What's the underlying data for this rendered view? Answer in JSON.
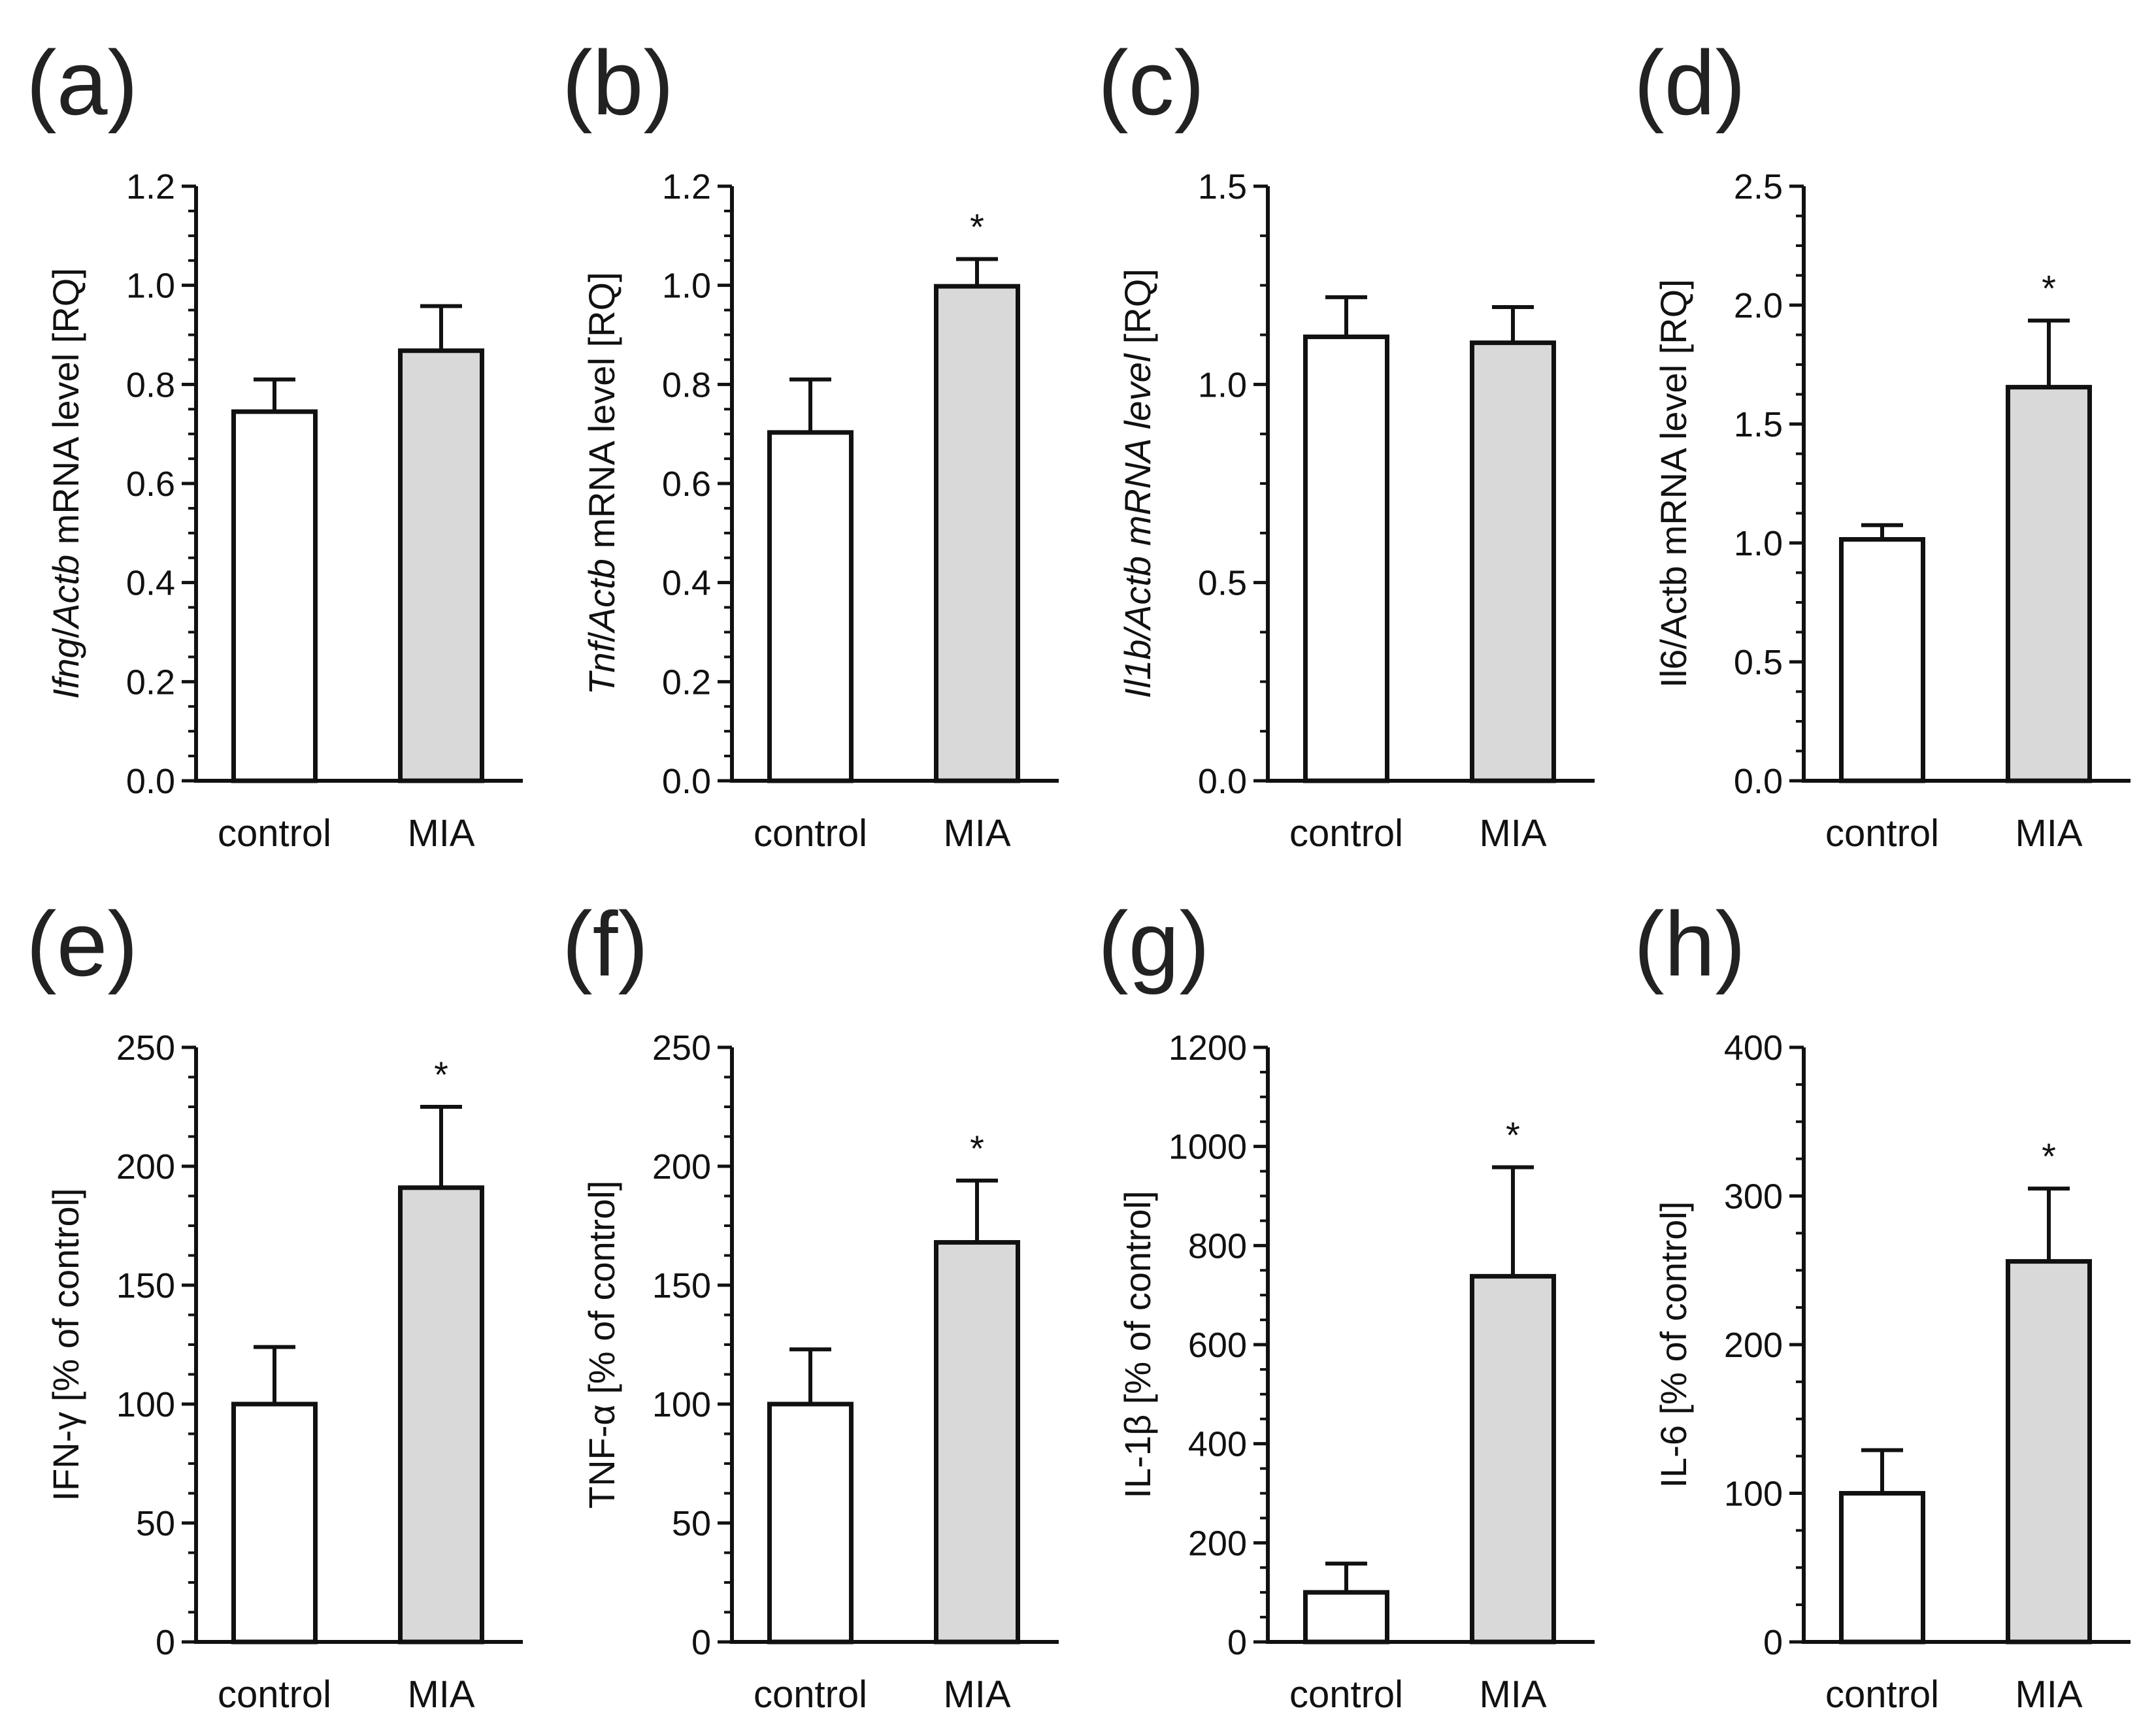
{
  "chart_data": [
    {
      "type": "bar",
      "panel_label": "(a)",
      "categories": [
        "control",
        "MIA"
      ],
      "values": [
        0.745,
        0.868
      ],
      "errors": [
        0.065,
        0.09
      ],
      "significance": [
        "",
        ""
      ],
      "ylabel_parts": [
        {
          "text": "Ifng",
          "italic": true
        },
        {
          "text": "/",
          "italic": false
        },
        {
          "text": "Actb",
          "italic": true
        },
        {
          "text": " mRNA level [RQ]",
          "italic": false
        }
      ],
      "ylim": [
        0,
        1.2
      ],
      "yticks": [
        "0.0",
        "0.2",
        "0.4",
        "0.6",
        "0.8",
        "1.0",
        "1.2"
      ],
      "bar_colors": [
        "#ffffff",
        "#d9d9d9"
      ]
    },
    {
      "type": "bar",
      "panel_label": "(b)",
      "categories": [
        "control",
        "MIA"
      ],
      "values": [
        0.703,
        0.998
      ],
      "errors": [
        0.107,
        0.055
      ],
      "significance": [
        "",
        "*"
      ],
      "ylabel_parts": [
        {
          "text": "Tnf",
          "italic": true
        },
        {
          "text": "/",
          "italic": false
        },
        {
          "text": "Actb",
          "italic": true
        },
        {
          "text": " mRNA level [RQ]",
          "italic": false
        }
      ],
      "ylim": [
        0,
        1.2
      ],
      "yticks": [
        "0.0",
        "0.2",
        "0.4",
        "0.6",
        "0.8",
        "1.0",
        "1.2"
      ],
      "bar_colors": [
        "#ffffff",
        "#d9d9d9"
      ]
    },
    {
      "type": "bar",
      "panel_label": "(c)",
      "categories": [
        "control",
        "MIA"
      ],
      "values": [
        1.12,
        1.105
      ],
      "errors": [
        0.1,
        0.09
      ],
      "significance": [
        "",
        ""
      ],
      "ylabel_parts": [
        {
          "text": "Il1b",
          "italic": true
        },
        {
          "text": "/",
          "italic": true
        },
        {
          "text": "Actb",
          "italic": true
        },
        {
          "text": " mRNA level",
          "italic": true
        },
        {
          "text": " [RQ]",
          "italic": false
        }
      ],
      "ylim": [
        0,
        1.5
      ],
      "yticks": [
        "0.0",
        "0.5",
        "1.0",
        "1.5"
      ],
      "bar_colors": [
        "#ffffff",
        "#d9d9d9"
      ]
    },
    {
      "type": "bar",
      "panel_label": "(d)",
      "categories": [
        "control",
        "MIA"
      ],
      "values": [
        1.015,
        1.655
      ],
      "errors": [
        0.06,
        0.28
      ],
      "significance": [
        "",
        "*"
      ],
      "ylabel_parts": [
        {
          "text": "Il6/Actb mRNA level [RQ]",
          "italic": false
        }
      ],
      "ylim": [
        0,
        2.5
      ],
      "yticks": [
        "0.0",
        "0.5",
        "1.0",
        "1.5",
        "2.0",
        "2.5"
      ],
      "bar_colors": [
        "#ffffff",
        "#d9d9d9"
      ]
    },
    {
      "type": "bar",
      "panel_label": "(e)",
      "categories": [
        "control",
        "MIA"
      ],
      "values": [
        100,
        191
      ],
      "errors": [
        24,
        34
      ],
      "significance": [
        "",
        "*"
      ],
      "ylabel_parts": [
        {
          "text": "IFN-γ [% of control]",
          "italic": false
        }
      ],
      "ylim": [
        0,
        250
      ],
      "yticks": [
        "0",
        "50",
        "100",
        "150",
        "200",
        "250"
      ],
      "bar_colors": [
        "#ffffff",
        "#d9d9d9"
      ]
    },
    {
      "type": "bar",
      "panel_label": "(f)",
      "categories": [
        "control",
        "MIA"
      ],
      "values": [
        100,
        168
      ],
      "errors": [
        23,
        26
      ],
      "significance": [
        "",
        "*"
      ],
      "ylabel_parts": [
        {
          "text": "TNF-α [% of control]",
          "italic": false
        }
      ],
      "ylim": [
        0,
        250
      ],
      "yticks": [
        "0",
        "50",
        "100",
        "150",
        "200",
        "250"
      ],
      "bar_colors": [
        "#ffffff",
        "#d9d9d9"
      ]
    },
    {
      "type": "bar",
      "panel_label": "(g)",
      "categories": [
        "control",
        "MIA"
      ],
      "values": [
        100,
        738
      ],
      "errors": [
        58,
        220
      ],
      "significance": [
        "",
        "*"
      ],
      "ylabel_parts": [
        {
          "text": "IL-1β [% of control]",
          "italic": false
        }
      ],
      "ylim": [
        0,
        1200
      ],
      "yticks": [
        "0",
        "200",
        "400",
        "600",
        "800",
        "1000",
        "1200"
      ],
      "bar_colors": [
        "#ffffff",
        "#d9d9d9"
      ]
    },
    {
      "type": "bar",
      "panel_label": "(h)",
      "categories": [
        "control",
        "MIA"
      ],
      "values": [
        100,
        256
      ],
      "errors": [
        29,
        49
      ],
      "significance": [
        "",
        "*"
      ],
      "ylabel_parts": [
        {
          "text": "IL-6 [% of control]",
          "italic": false
        }
      ],
      "ylim": [
        0,
        400
      ],
      "yticks": [
        "0",
        "100",
        "200",
        "300",
        "400"
      ],
      "bar_colors": [
        "#ffffff",
        "#d9d9d9"
      ]
    }
  ]
}
